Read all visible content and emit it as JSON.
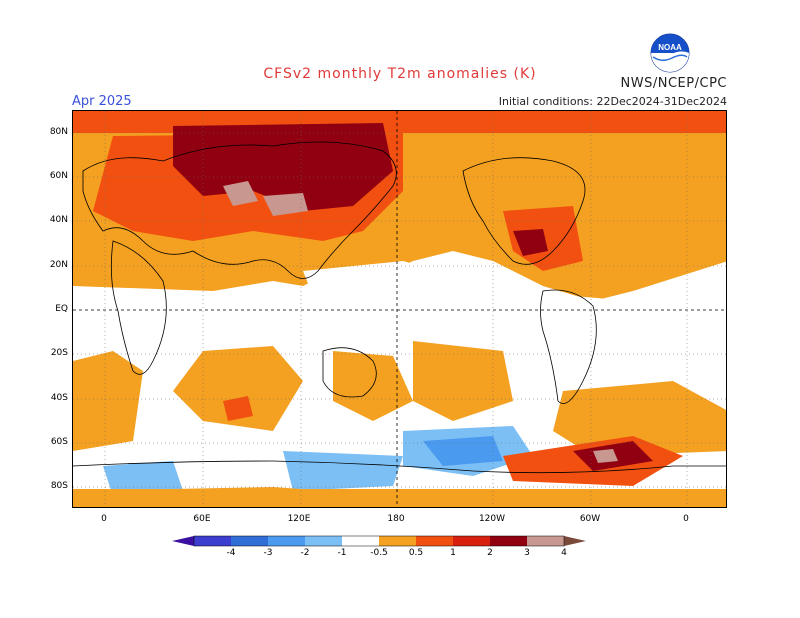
{
  "title": "CFSv2 monthly T2m anomalies (K)",
  "period": "Apr 2025",
  "initial_conditions": "Initial conditions: 22Dec2024-31Dec2024",
  "agency": "NWS/NCEP/CPC",
  "logo_text": "NOAA",
  "lat_labels": [
    "80N",
    "60N",
    "40N",
    "20N",
    "EQ",
    "20S",
    "40S",
    "60S",
    "80S"
  ],
  "lon_labels": [
    "0",
    "60E",
    "120E",
    "180",
    "120W",
    "60W",
    "0"
  ],
  "colorbar": {
    "labels": [
      "-4",
      "-3",
      "-2",
      "-1",
      "-0.5",
      "0.5",
      "1",
      "2",
      "3",
      "4"
    ],
    "colors": [
      "#3a10a0",
      "#3c3ed0",
      "#2f6ed6",
      "#4a9af0",
      "#7cbff5",
      "#ffffff",
      "#f4a020",
      "#f25010",
      "#d82010",
      "#900010",
      "#c89890",
      "#7a4a3a"
    ]
  }
}
